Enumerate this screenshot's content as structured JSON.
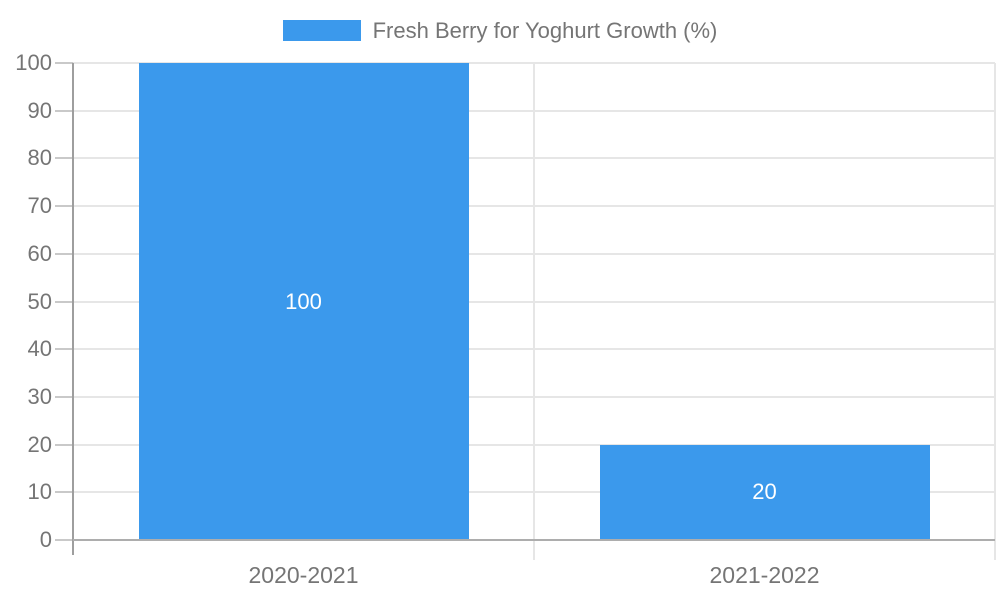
{
  "chart_data": {
    "type": "bar",
    "title": "",
    "legend": "Fresh Berry for Yoghurt Growth (%)",
    "legend_position": "top-center",
    "categories": [
      "2020-2021",
      "2021-2022"
    ],
    "values": [
      100,
      20
    ],
    "bar_value_labels": [
      "100",
      "20"
    ],
    "xlabel": "",
    "ylabel": "",
    "ylim": [
      0,
      100
    ],
    "ytick_step": 10,
    "ytick_labels": [
      "0",
      "10",
      "20",
      "30",
      "40",
      "50",
      "60",
      "70",
      "80",
      "90",
      "100"
    ],
    "grid": true,
    "colors": {
      "bar": "#3B99EC",
      "bar_label": "#FFFFFF",
      "axis_text": "#757575",
      "gridline": "#E6E6E6",
      "y_axis_line": "#9E9E9E",
      "x_axis_line": "#ADADAD",
      "tick": "#C9C9C9",
      "background": "#FFFFFF"
    }
  }
}
